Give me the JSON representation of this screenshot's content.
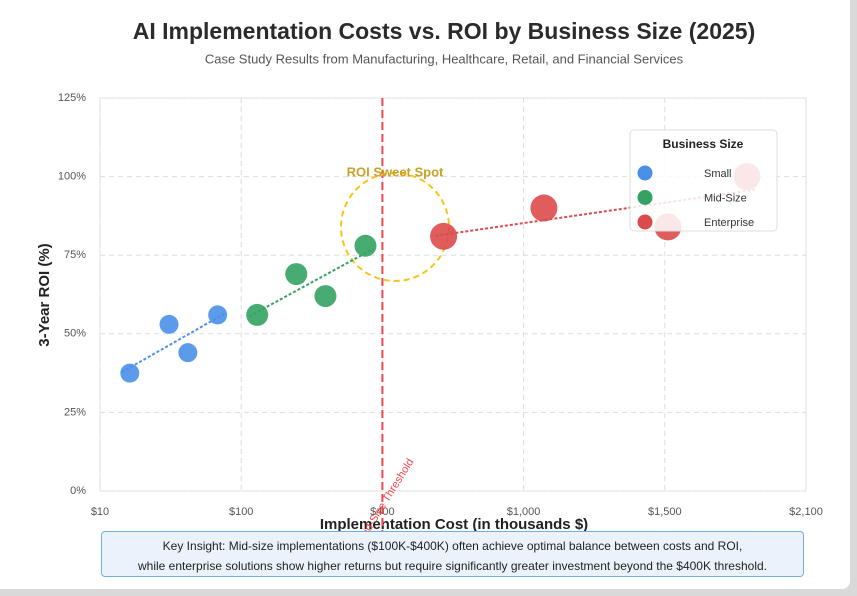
{
  "chart_data": {
    "type": "scatter",
    "title": "AI Implementation Costs vs. ROI by Business Size (2025)",
    "subtitle": "Case Study Results from Manufacturing, Healthcare, Retail, and Financial Services",
    "x_label": "Implementation Cost (in thousands $)",
    "y_label": "3-Year ROI (%)",
    "xlim": [
      10,
      2100
    ],
    "ylim": [
      0,
      125
    ],
    "xticks": [
      {
        "value": 10,
        "label": "$10"
      },
      {
        "value": 100,
        "label": "$100"
      },
      {
        "value": 400,
        "label": "$400"
      },
      {
        "value": 1000,
        "label": "$1,000"
      },
      {
        "value": 1500,
        "label": "$1,500"
      },
      {
        "value": 2100,
        "label": "$2,100"
      }
    ],
    "yticks": [
      {
        "value": 0,
        "label": "0%"
      },
      {
        "value": 25,
        "label": "25%"
      },
      {
        "value": 50,
        "label": "50%"
      },
      {
        "value": 75,
        "label": "75%"
      },
      {
        "value": 100,
        "label": "100%"
      },
      {
        "value": 125,
        "label": "125%"
      }
    ],
    "grid": true,
    "legend_title": "Business Size",
    "legend_position": "upper right",
    "series": [
      {
        "name": "Small",
        "color": "#4a8fe8",
        "x": [
          29,
          54,
          66,
          85
        ],
        "values": [
          37.5,
          53,
          44,
          56
        ]
      },
      {
        "name": "Mid-Size",
        "color": "#34a263",
        "x": [
          134,
          217,
          279,
          364
        ],
        "values": [
          56,
          69,
          62,
          78
        ]
      },
      {
        "name": "Enterprise",
        "color": "#dc4b4b",
        "x": [
          660,
          1072,
          1513,
          1849
        ],
        "values": [
          81,
          90,
          84,
          100
        ]
      }
    ],
    "threshold": {
      "x": 400,
      "label": "Mid-Size Threshold",
      "color": "#f0474c"
    },
    "sweet_spot": {
      "label": "ROI Sweet Spot",
      "color": "#f5c518"
    },
    "insight": [
      "Key Insight: Mid-size implementations ($100K-$400K) often achieve optimal balance between costs and ROI,",
      "while enterprise solutions show higher returns but require significantly greater investment beyond the $400K threshold."
    ]
  }
}
